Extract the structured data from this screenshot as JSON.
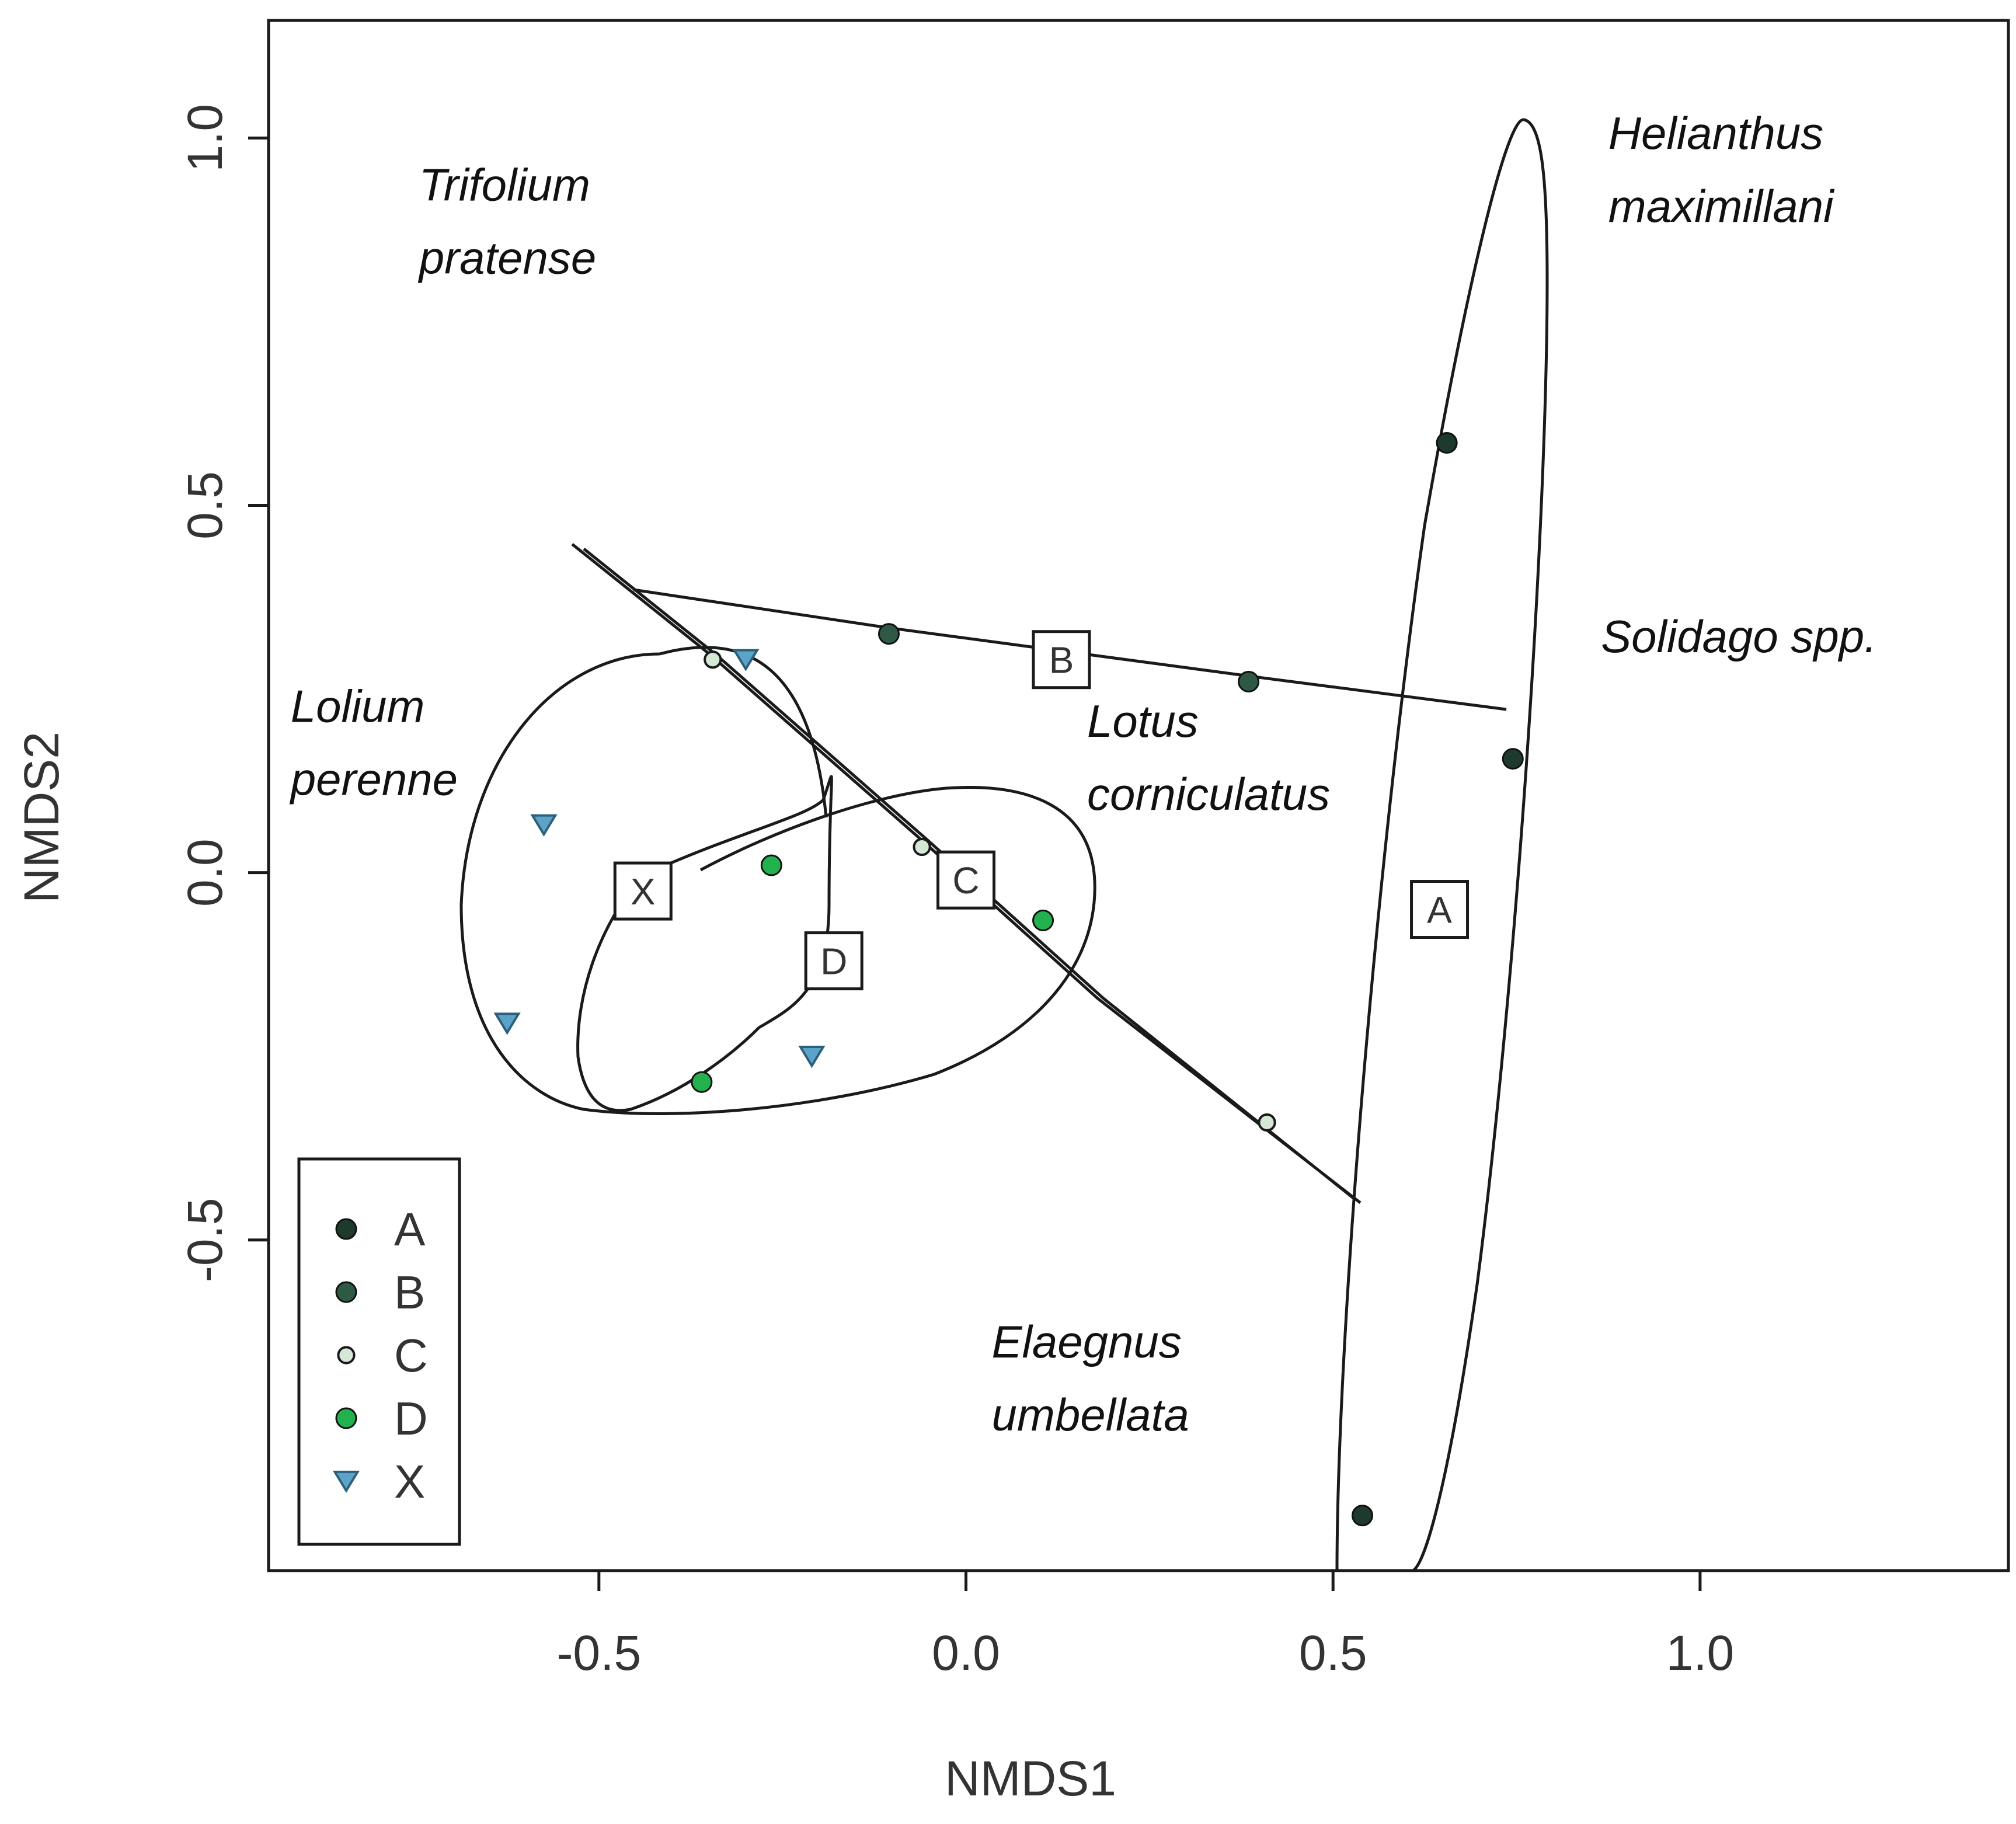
{
  "chart_data": {
    "type": "scatter",
    "xlabel": "NMDS1",
    "ylabel": "NMDS2",
    "xlim": [
      -0.95,
      1.42
    ],
    "ylim": [
      -0.95,
      1.16
    ],
    "x_ticks": [
      -0.5,
      0.0,
      0.5,
      1.0
    ],
    "x_tick_labels": [
      "-0.5",
      "0.0",
      "0.5",
      "1.0"
    ],
    "y_ticks": [
      -0.5,
      0.0,
      0.5,
      1.0
    ],
    "y_tick_labels": [
      "-0.5",
      "0.0",
      "0.5",
      "1.0"
    ],
    "grid": false,
    "legend_position": "bottom-left",
    "series": [
      {
        "name": "A",
        "marker": "circle",
        "color": "#1e3a2c",
        "points": [
          [
            0.655,
            0.585
          ],
          [
            0.745,
            0.155
          ],
          [
            0.54,
            -0.875
          ]
        ]
      },
      {
        "name": "B",
        "marker": "circle",
        "color": "#2e5a45",
        "points": [
          [
            -0.105,
            0.325
          ],
          [
            0.385,
            0.26
          ]
        ]
      },
      {
        "name": "C",
        "marker": "circle-open",
        "color": "#d5e8d5",
        "points": [
          [
            -0.345,
            0.29
          ],
          [
            -0.06,
            0.035
          ],
          [
            0.41,
            -0.34
          ]
        ]
      },
      {
        "name": "D",
        "marker": "circle",
        "color": "#22b14c",
        "points": [
          [
            -0.265,
            0.01
          ],
          [
            0.105,
            -0.065
          ],
          [
            -0.36,
            -0.285
          ]
        ]
      },
      {
        "name": "X",
        "marker": "triangle-down",
        "color": "#5ba3c9",
        "points": [
          [
            -0.3,
            0.29
          ],
          [
            -0.575,
            0.065
          ],
          [
            -0.625,
            -0.205
          ],
          [
            -0.21,
            -0.25
          ]
        ]
      }
    ],
    "centroids": [
      {
        "label": "A",
        "x": 0.645,
        "y": -0.05
      },
      {
        "label": "B",
        "x": 0.13,
        "y": 0.29
      },
      {
        "label": "C",
        "x": 0.0,
        "y": -0.01
      },
      {
        "label": "D",
        "x": -0.18,
        "y": -0.12
      },
      {
        "label": "X",
        "x": -0.44,
        "y": -0.025
      }
    ],
    "species_labels": [
      {
        "lines": [
          "Trifolium",
          "pratense"
        ],
        "x": -0.745,
        "y": 0.915
      },
      {
        "lines": [
          "Helianthus",
          "maximillani"
        ],
        "x": 0.875,
        "y": 0.985
      },
      {
        "lines": [
          "Lolium",
          "perenne"
        ],
        "x": -0.92,
        "y": 0.205
      },
      {
        "lines": [
          "Lotus",
          "corniculatus"
        ],
        "x": 0.165,
        "y": 0.185
      },
      {
        "lines": [
          "Solidago spp."
        ],
        "x": 0.865,
        "y": 0.3
      },
      {
        "lines": [
          "Elaegnus",
          "umbellata"
        ],
        "x": 0.035,
        "y": -0.66
      }
    ]
  }
}
